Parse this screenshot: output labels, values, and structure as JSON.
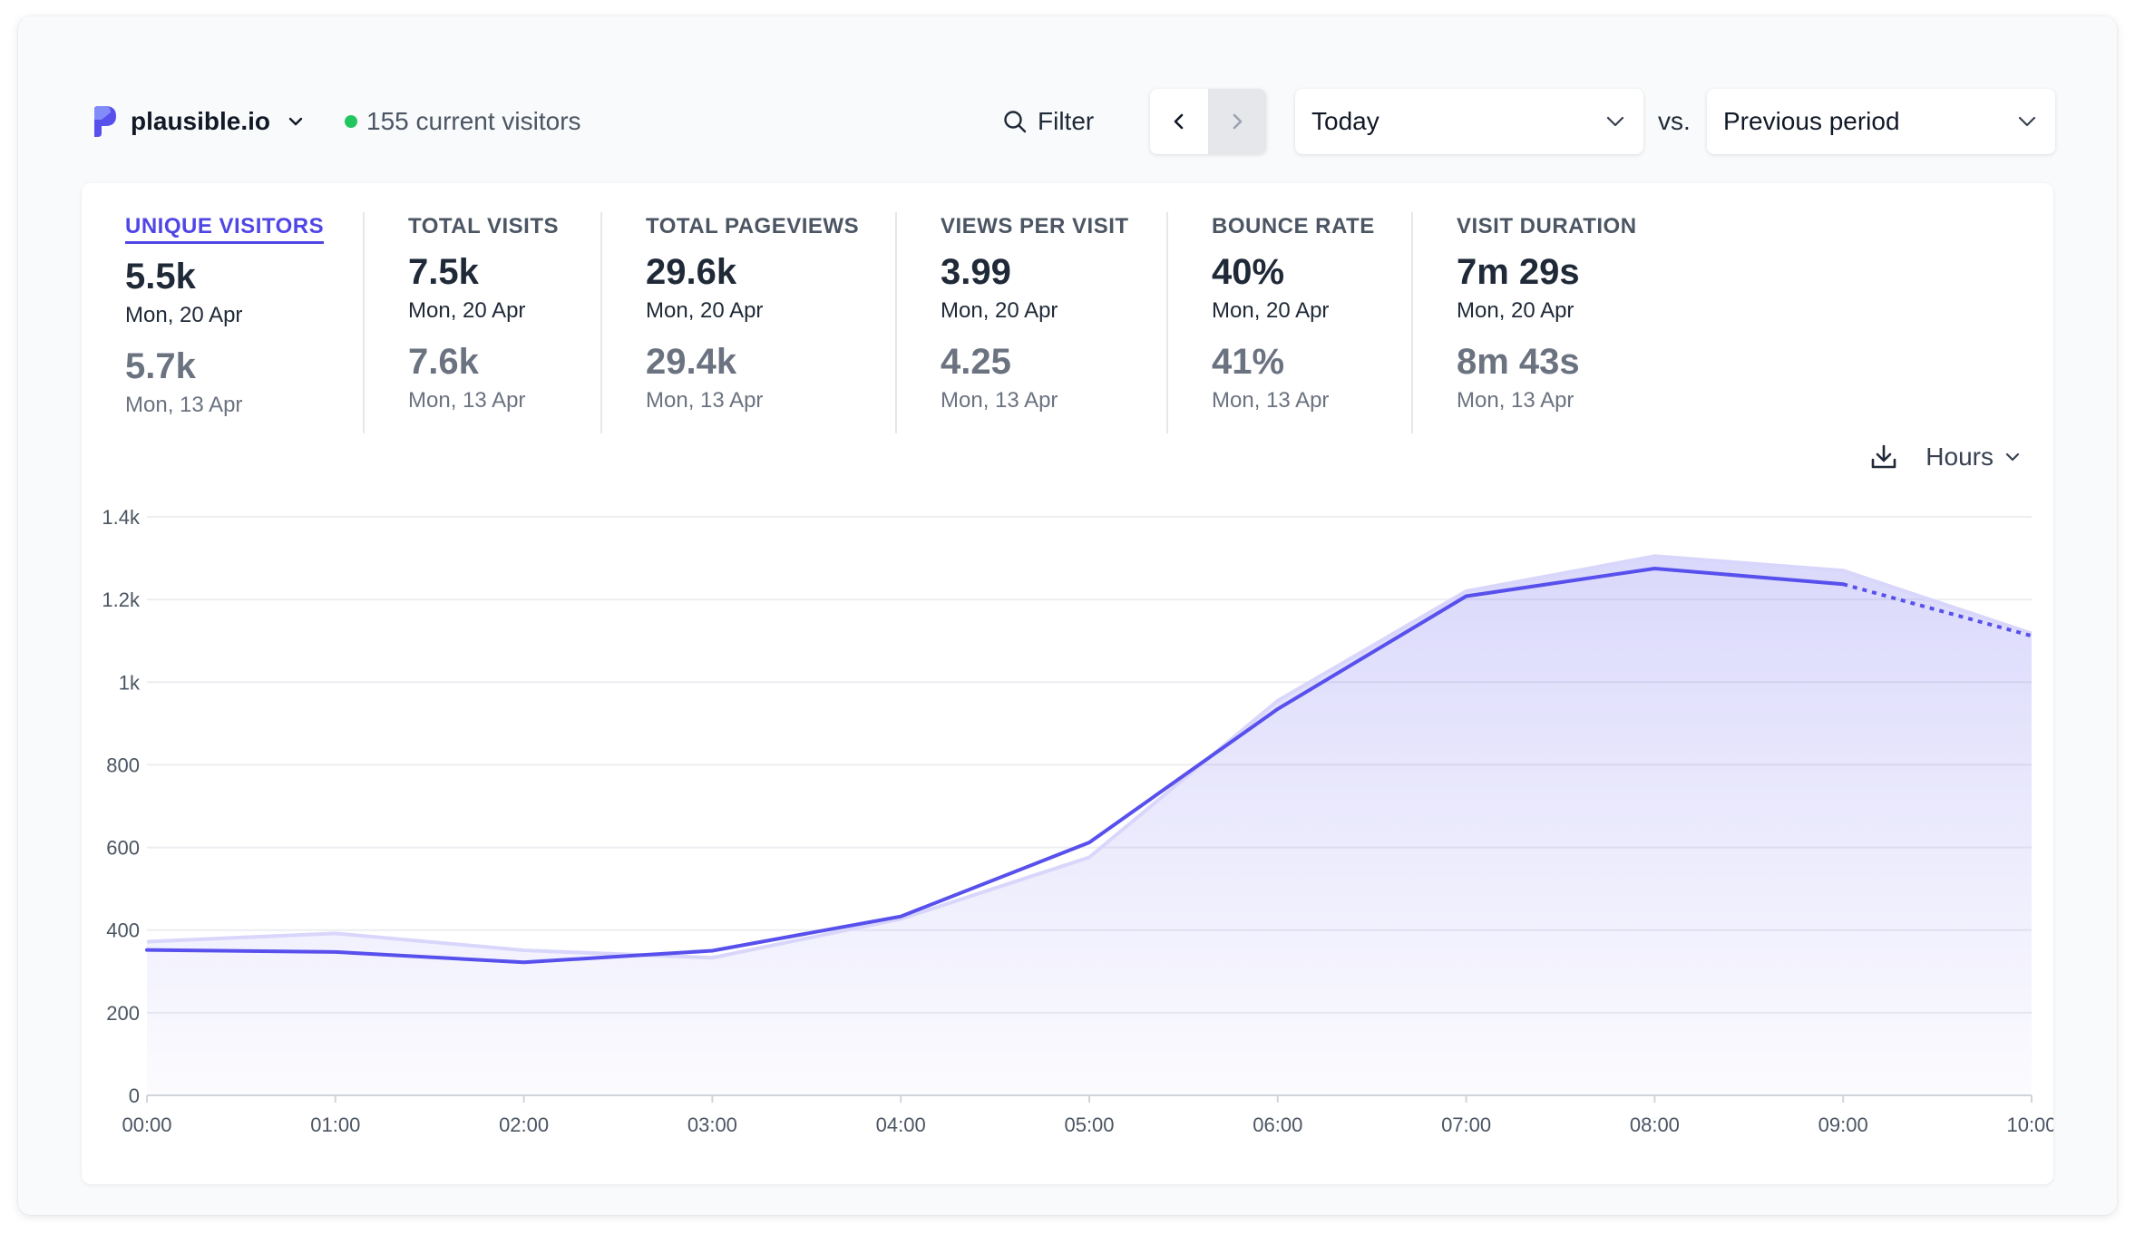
{
  "header": {
    "site_name": "plausible.io",
    "live_visitors": "155 current visitors",
    "filter_label": "Filter",
    "period": "Today",
    "vs_label": "vs.",
    "comparison": "Previous period"
  },
  "metrics": [
    {
      "label": "UNIQUE VISITORS",
      "value": "5.5k",
      "date": "Mon, 20 Apr",
      "prev_value": "5.7k",
      "prev_date": "Mon, 13 Apr"
    },
    {
      "label": "TOTAL VISITS",
      "value": "7.5k",
      "date": "Mon, 20 Apr",
      "prev_value": "7.6k",
      "prev_date": "Mon, 13 Apr"
    },
    {
      "label": "TOTAL PAGEVIEWS",
      "value": "29.6k",
      "date": "Mon, 20 Apr",
      "prev_value": "29.4k",
      "prev_date": "Mon, 13 Apr"
    },
    {
      "label": "VIEWS PER VISIT",
      "value": "3.99",
      "date": "Mon, 20 Apr",
      "prev_value": "4.25",
      "prev_date": "Mon, 13 Apr"
    },
    {
      "label": "BOUNCE RATE",
      "value": "40%",
      "date": "Mon, 20 Apr",
      "prev_value": "41%",
      "prev_date": "Mon, 13 Apr"
    },
    {
      "label": "VISIT DURATION",
      "value": "7m 29s",
      "date": "Mon, 20 Apr",
      "prev_value": "8m 43s",
      "prev_date": "Mon, 13 Apr"
    }
  ],
  "interval_label": "Hours",
  "colors": {
    "accent": "#5850ec",
    "comparison": "#d9d6fb",
    "live": "#22c55e"
  },
  "icons": {
    "logo": "plausible-logo",
    "filter": "search-icon",
    "download": "download-icon"
  },
  "chart_data": {
    "type": "line",
    "x": [
      "00:00",
      "01:00",
      "02:00",
      "03:00",
      "04:00",
      "05:00",
      "06:00",
      "07:00",
      "08:00",
      "09:00",
      "10:00"
    ],
    "series": [
      {
        "values": [
          352,
          347,
          322,
          350,
          433,
          612,
          935,
          1208,
          1275,
          1237,
          1112
        ]
      },
      {
        "values": [
          372,
          392,
          351,
          333,
          427,
          576,
          955,
          1220,
          1305,
          1270,
          1118
        ]
      }
    ],
    "yticks": [
      0,
      200,
      400,
      600,
      800,
      1000,
      1200,
      1400
    ],
    "ytick_labels": [
      "0",
      "200",
      "400",
      "600",
      "800",
      "1k",
      "1.2k",
      "1.4k"
    ],
    "ylim": [
      0,
      1400
    ],
    "grid": true,
    "last_segment_dashed": true
  }
}
